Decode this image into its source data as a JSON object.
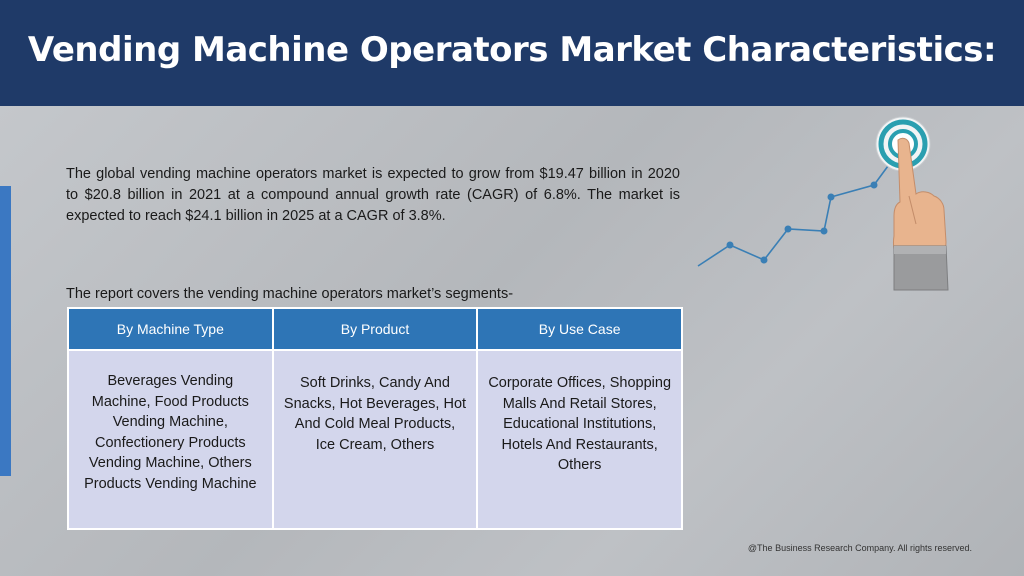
{
  "header": {
    "title": "Vending Machine Operators Market Characteristics:"
  },
  "intro": {
    "text": "The global vending machine operators market is expected to grow from $19.47 billion in 2020 to $20.8 billion in 2021 at a compound annual growth rate (CAGR) of 6.8%. The market is expected to reach $24.1 billion in 2025 at a CAGR of 3.8%."
  },
  "segments_intro": "The report covers the vending machine operators market’s segments-",
  "table": {
    "headers": [
      "By Machine Type",
      "By Product",
      "By Use Case"
    ],
    "cells": [
      "Beverages Vending Machine, Food Products Vending Machine, Confectionery Products Vending Machine, Others Products Vending Machine",
      "Soft Drinks, Candy And Snacks, Hot Beverages, Hot And Cold Meal Products, Ice Cream, Others",
      "Corporate Offices, Shopping Malls And Retail Stores, Educational Institutions, Hotels And Restaurants, Others"
    ]
  },
  "graphic": {
    "icon": "hand-pointing-target-growth-icon",
    "accent": "#2a9fb0",
    "line_color": "#3a7fb5"
  },
  "footer": {
    "copyright": "@The Business Research Company. All rights reserved."
  }
}
